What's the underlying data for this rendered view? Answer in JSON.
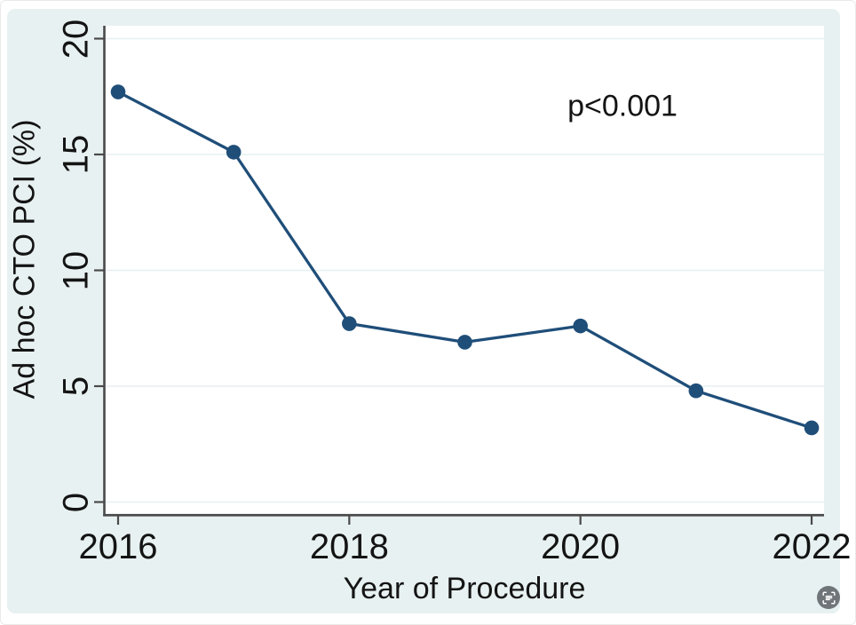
{
  "chart_data": {
    "type": "line",
    "title": "",
    "xlabel": "Year of Procedure",
    "ylabel": "Ad hoc CTO PCI (%)",
    "x": [
      2016,
      2017,
      2018,
      2019,
      2020,
      2021,
      2022
    ],
    "values": [
      17.7,
      15.1,
      7.7,
      6.9,
      7.6,
      4.8,
      3.2
    ],
    "series_name": "Ad hoc CTO PCI (%)",
    "annotation": "p<0.001",
    "xticks": [
      2016,
      2018,
      2020,
      2022
    ],
    "yticks": [
      0,
      5,
      10,
      15,
      20
    ],
    "xlim": [
      2015.9,
      2022.1
    ],
    "ylim": [
      0,
      21
    ],
    "grid": "horizontal",
    "legend": "none",
    "marker": "circle"
  },
  "colors": {
    "line": "#1f4e79",
    "marker": "#1f4e79",
    "card_background": "#e8f1f1",
    "plot_background": "#ffffff",
    "grid": "#e6f0f2",
    "axis": "#4a4a4a",
    "text": "#141414",
    "scan_button": "#55595e"
  },
  "icons": {
    "scan": "scan-lens-icon"
  }
}
